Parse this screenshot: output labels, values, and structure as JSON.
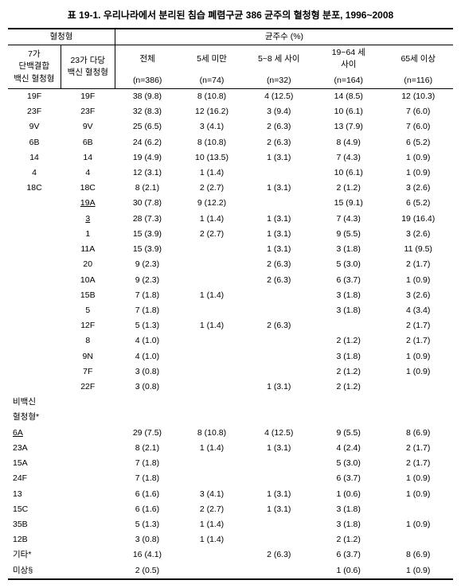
{
  "title": "표 19-1. 우리나라에서 분리된 침습 폐렴구균 386 균주의 혈청형 분포, 1996~2008",
  "header": {
    "group1": "혈청형",
    "group2": "균주수 (%)",
    "col0": "7가\n단백결합\n백신 혈청형",
    "col1": "23가 다당\n백신 혈청형",
    "col2_l1": "전체",
    "col2_l2": "(n=386)",
    "col3_l1": "5세 미만",
    "col3_l2": "(n=74)",
    "col4_l1": "5~8 세 사이",
    "col4_l2": "(n=32)",
    "col5_l1": "19~64 세\n사이",
    "col5_l2": "(n=164)",
    "col6_l1": "65세 이상",
    "col6_l2": "(n=116)"
  },
  "rows": [
    {
      "c0": "19F",
      "c1": "19F",
      "c2": "38 (9.8)",
      "c3": "8 (10.8)",
      "c4": "4 (12.5)",
      "c5": "14 (8.5)",
      "c6": "12 (10.3)"
    },
    {
      "c0": "23F",
      "c1": "23F",
      "c2": "32 (8.3)",
      "c3": "12 (16.2)",
      "c4": "3 (9.4)",
      "c5": "10 (6.1)",
      "c6": "7 (6.0)"
    },
    {
      "c0": "9V",
      "c1": "9V",
      "c2": "25 (6.5)",
      "c3": "3 (4.1)",
      "c4": "2 (6.3)",
      "c5": "13 (7.9)",
      "c6": "7 (6.0)"
    },
    {
      "c0": "6B",
      "c1": "6B",
      "c2": "24 (6.2)",
      "c3": "8 (10.8)",
      "c4": "2 (6.3)",
      "c5": "8 (4.9)",
      "c6": "6 (5.2)"
    },
    {
      "c0": "14",
      "c1": "14",
      "c2": "19 (4.9)",
      "c3": "10 (13.5)",
      "c4": "1 (3.1)",
      "c5": "7 (4.3)",
      "c6": "1 (0.9)"
    },
    {
      "c0": "4",
      "c1": "4",
      "c2": "12 (3.1)",
      "c3": "1 (1.4)",
      "c4": "",
      "c5": "10 (6.1)",
      "c6": "1 (0.9)"
    },
    {
      "c0": "18C",
      "c1": "18C",
      "c2": "8 (2.1)",
      "c3": "2 (2.7)",
      "c4": "1 (3.1)",
      "c5": "2 (1.2)",
      "c6": "3 (2.6)"
    },
    {
      "c0": "",
      "c1": "19A",
      "u1": true,
      "c2": "30 (7.8)",
      "c3": "9 (12.2)",
      "c4": "",
      "c5": "15 (9.1)",
      "c6": "6 (5.2)"
    },
    {
      "c0": "",
      "c1": "3",
      "u1": true,
      "c2": "28 (7.3)",
      "c3": "1 (1.4)",
      "c4": "1 (3.1)",
      "c5": "7 (4.3)",
      "c6": "19 (16.4)"
    },
    {
      "c0": "",
      "c1": "1",
      "c2": "15 (3.9)",
      "c3": "2 (2.7)",
      "c4": "1 (3.1)",
      "c5": "9 (5.5)",
      "c6": "3 (2.6)"
    },
    {
      "c0": "",
      "c1": "11A",
      "c2": "15 (3.9)",
      "c3": "",
      "c4": "1 (3.1)",
      "c5": "3 (1.8)",
      "c6": "11 (9.5)"
    },
    {
      "c0": "",
      "c1": "20",
      "c2": "9 (2.3)",
      "c3": "",
      "c4": "2 (6.3)",
      "c5": "5 (3.0)",
      "c6": "2 (1.7)"
    },
    {
      "c0": "",
      "c1": "10A",
      "c2": "9 (2.3)",
      "c3": "",
      "c4": "2 (6.3)",
      "c5": "6 (3.7)",
      "c6": "1 (0.9)"
    },
    {
      "c0": "",
      "c1": "15B",
      "c2": "7 (1.8)",
      "c3": "1 (1.4)",
      "c4": "",
      "c5": "3 (1.8)",
      "c6": "3 (2.6)"
    },
    {
      "c0": "",
      "c1": "5",
      "c2": "7 (1.8)",
      "c3": "",
      "c4": "",
      "c5": "3 (1.8)",
      "c6": "4 (3.4)"
    },
    {
      "c0": "",
      "c1": "12F",
      "c2": "5 (1.3)",
      "c3": "1 (1.4)",
      "c4": "2 (6.3)",
      "c5": "",
      "c6": "2 (1.7)"
    },
    {
      "c0": "",
      "c1": "8",
      "c2": "4 (1.0)",
      "c3": "",
      "c4": "",
      "c5": "2 (1.2)",
      "c6": "2 (1.7)"
    },
    {
      "c0": "",
      "c1": "9N",
      "c2": "4 (1.0)",
      "c3": "",
      "c4": "",
      "c5": "3 (1.8)",
      "c6": "1 (0.9)"
    },
    {
      "c0": "",
      "c1": "7F",
      "c2": "3 (0.8)",
      "c3": "",
      "c4": "",
      "c5": "2 (1.2)",
      "c6": "1 (0.9)"
    },
    {
      "c0": "",
      "c1": "22F",
      "c2": "3 (0.8)",
      "c3": "",
      "c4": "1 (3.1)",
      "c5": "2 (1.2)",
      "c6": ""
    },
    {
      "c0": "비백신",
      "c1": "",
      "c2": "",
      "c3": "",
      "c4": "",
      "c5": "",
      "c6": "",
      "left": true
    },
    {
      "c0": "혈청형*",
      "c1": "",
      "c2": "",
      "c3": "",
      "c4": "",
      "c5": "",
      "c6": "",
      "left": true
    },
    {
      "c0": "6A",
      "u0": true,
      "c1": "",
      "c2": "29 (7.5)",
      "c3": "8 (10.8)",
      "c4": "4 (12.5)",
      "c5": "9 (5.5)",
      "c6": "8 (6.9)",
      "left": true
    },
    {
      "c0": "23A",
      "c1": "",
      "c2": "8 (2.1)",
      "c3": "1 (1.4)",
      "c4": "1 (3.1)",
      "c5": "4 (2.4)",
      "c6": "2 (1.7)",
      "left": true
    },
    {
      "c0": "15A",
      "c1": "",
      "c2": "7 (1.8)",
      "c3": "",
      "c4": "",
      "c5": "5 (3.0)",
      "c6": "2 (1.7)",
      "left": true
    },
    {
      "c0": "24F",
      "c1": "",
      "c2": "7 (1.8)",
      "c3": "",
      "c4": "",
      "c5": "6 (3.7)",
      "c6": "1 (0.9)",
      "left": true
    },
    {
      "c0": "13",
      "c1": "",
      "c2": "6 (1.6)",
      "c3": "3 (4.1)",
      "c4": "1 (3.1)",
      "c5": "1 (0.6)",
      "c6": "1 (0.9)",
      "left": true
    },
    {
      "c0": "15C",
      "c1": "",
      "c2": "6 (1.6)",
      "c3": "2 (2.7)",
      "c4": "1 (3.1)",
      "c5": "3 (1.8)",
      "c6": "",
      "left": true
    },
    {
      "c0": "35B",
      "c1": "",
      "c2": "5 (1.3)",
      "c3": "1 (1.4)",
      "c4": "",
      "c5": "3 (1.8)",
      "c6": "1 (0.9)",
      "left": true
    },
    {
      "c0": "12B",
      "c1": "",
      "c2": "3 (0.8)",
      "c3": "1 (1.4)",
      "c4": "",
      "c5": "2 (1.2)",
      "c6": "",
      "left": true
    },
    {
      "c0": "기타*",
      "c1": "",
      "c2": "16 (4.1)",
      "c3": "",
      "c4": "2 (6.3)",
      "c5": "6 (3.7)",
      "c6": "8 (6.9)",
      "left": true
    },
    {
      "c0": "미상§",
      "c1": "",
      "c2": "2 (0.5)",
      "c3": "",
      "c4": "",
      "c5": "1 (0.6)",
      "c6": "1 (0.9)",
      "left": true
    }
  ]
}
